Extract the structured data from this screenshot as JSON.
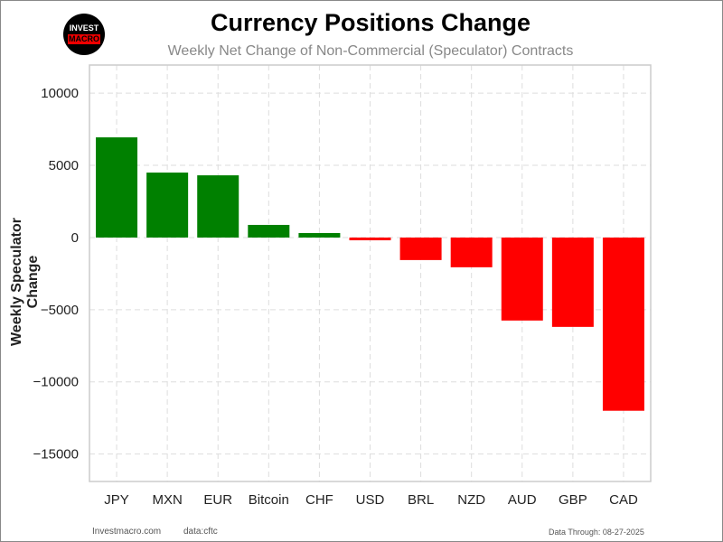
{
  "title": "Currency Positions Change",
  "subtitle": "Weekly Net Change of Non-Commercial (Speculator) Contracts",
  "logo": {
    "line1": "INVEST",
    "line2": "MACRO"
  },
  "footer": {
    "site": "Investmacro.com",
    "source": "data:cftc",
    "date": "Data Through: 08-27-2025"
  },
  "colors": {
    "positive": "#008000",
    "negative": "#ff0000",
    "grid": "#dddddd"
  },
  "chart_data": {
    "type": "bar",
    "title": "Currency Positions Change",
    "xlabel": "",
    "ylabel": "Weekly Speculator Change",
    "categories": [
      "JPY",
      "MXN",
      "EUR",
      "Bitcoin",
      "CHF",
      "USD",
      "BRL",
      "NZD",
      "AUD",
      "GBP",
      "CAD"
    ],
    "values": [
      6940,
      4500,
      4310,
      875,
      310,
      -190,
      -1560,
      -2060,
      -5750,
      -6190,
      -12000
    ],
    "yticks": [
      10000,
      5000,
      0,
      -5000,
      -10000,
      -15000
    ],
    "ytick_labels": [
      "10000",
      "5000",
      "0",
      "−5000",
      "−10000",
      "−15000"
    ],
    "ylim": [
      -16900,
      11950
    ],
    "grid": true
  }
}
